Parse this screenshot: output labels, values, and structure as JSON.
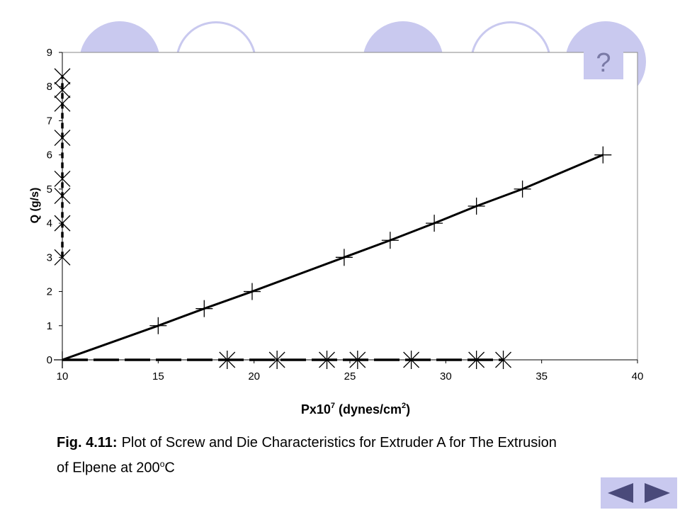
{
  "help_button": {
    "label": "?"
  },
  "caption": {
    "fig_label": "Fig. 4.11:",
    "line1": "Plot of Screw and Die Characteristics for Extruder A for The Extrusion",
    "line2_prefix": "of Elpene at 200",
    "line2_sup": "o",
    "line2_suffix": "C"
  },
  "nav": {
    "prev_icon": "triangle-left-icon",
    "next_icon": "triangle-right-icon"
  },
  "chart_data": {
    "type": "line",
    "title": "",
    "xlabel": "Px10^7 (dynes/cm^2)",
    "xlabel_parts": {
      "base": "Px10",
      "exp": "7",
      "mid": " (dynes/cm",
      "exp2": "2",
      "end": ")"
    },
    "ylabel": "Q (g/s)",
    "xlim": [
      10,
      40
    ],
    "ylim": [
      0,
      9
    ],
    "xticks": [
      10,
      15,
      20,
      25,
      30,
      35,
      40
    ],
    "yticks": [
      0,
      1,
      2,
      3,
      4,
      5,
      6,
      7,
      8,
      9
    ],
    "grid": false,
    "legend": "none",
    "series": [
      {
        "marker": "plus",
        "line": "solid",
        "x": [
          10.0,
          15.0,
          17.4,
          19.9,
          24.7,
          27.1,
          29.4,
          31.6,
          34.0,
          38.2
        ],
        "y": [
          0.0,
          1.0,
          1.5,
          2.0,
          3.0,
          3.5,
          4.0,
          4.5,
          5.0,
          6.0
        ]
      },
      {
        "marker": "x",
        "line": "dashed",
        "x": [
          10,
          10,
          10,
          10,
          10,
          10,
          10,
          10
        ],
        "y": [
          3.0,
          4.0,
          4.8,
          5.3,
          6.5,
          7.5,
          7.9,
          8.3
        ]
      },
      {
        "marker": "asterisk",
        "line": "dashed",
        "x": [
          18.6,
          21.2,
          23.8,
          25.4,
          28.2,
          31.6,
          33.0
        ],
        "y": [
          0,
          0,
          0,
          0,
          0,
          0,
          0
        ]
      }
    ]
  }
}
